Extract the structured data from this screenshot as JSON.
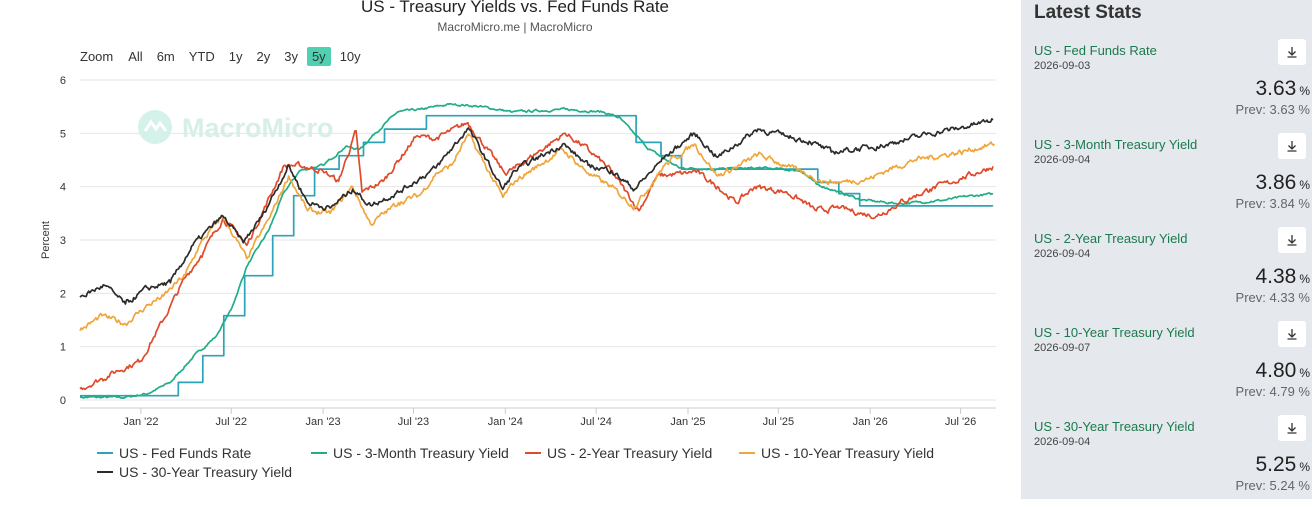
{
  "chart": {
    "title": "US - Treasury Yields vs. Fed Funds Rate",
    "subtitle": "MacroMicro.me | MacroMicro",
    "watermark": "MacroMicro",
    "zoom_label": "Zoom",
    "zoom_options": [
      "All",
      "6m",
      "YTD",
      "1y",
      "2y",
      "3y",
      "5y",
      "10y"
    ],
    "zoom_active": "5y"
  },
  "chart_data": {
    "type": "line",
    "title": "US - Treasury Yields vs. Fed Funds Rate",
    "xlabel": "",
    "ylabel": "Percent",
    "ylim": [
      0,
      6
    ],
    "yticks": [
      0,
      1,
      2,
      3,
      4,
      5,
      6
    ],
    "xlim": [
      "2021-09-01",
      "2026-09-10"
    ],
    "xticks": [
      {
        "date": "2022-01-01",
        "label": "Jan '22"
      },
      {
        "date": "2022-07-01",
        "label": "Jul '22"
      },
      {
        "date": "2023-01-01",
        "label": "Jan '23"
      },
      {
        "date": "2023-07-01",
        "label": "Jul '23"
      },
      {
        "date": "2024-01-01",
        "label": "Jan '24"
      },
      {
        "date": "2024-07-01",
        "label": "Jul '24"
      },
      {
        "date": "2025-01-01",
        "label": "Jan '25"
      },
      {
        "date": "2025-07-01",
        "label": "Jul '25"
      },
      {
        "date": "2026-01-01",
        "label": "Jan '26"
      },
      {
        "date": "2026-07-01",
        "label": "Jul '26"
      }
    ],
    "grid": true,
    "legend_position": "bottom",
    "series": [
      {
        "name": "US - Fed Funds Rate",
        "color": "#2ba3b8",
        "step": true,
        "points": [
          [
            "2021-09-01",
            0.08
          ],
          [
            "2022-03-17",
            0.33
          ],
          [
            "2022-05-05",
            0.83
          ],
          [
            "2022-06-16",
            1.58
          ],
          [
            "2022-07-28",
            2.33
          ],
          [
            "2022-09-22",
            3.08
          ],
          [
            "2022-11-03",
            3.83
          ],
          [
            "2022-12-15",
            4.33
          ],
          [
            "2023-02-02",
            4.58
          ],
          [
            "2023-03-23",
            4.83
          ],
          [
            "2023-05-04",
            5.08
          ],
          [
            "2023-07-27",
            5.33
          ],
          [
            "2024-09-19",
            4.83
          ],
          [
            "2024-11-08",
            4.58
          ],
          [
            "2024-12-19",
            4.33
          ],
          [
            "2025-09-18",
            4.08
          ],
          [
            "2025-10-30",
            3.87
          ],
          [
            "2025-12-11",
            3.64
          ],
          [
            "2026-09-03",
            3.63
          ]
        ]
      },
      {
        "name": "US - 3-Month Treasury Yield",
        "color": "#21ad87",
        "points": [
          [
            "2021-09-01",
            0.05
          ],
          [
            "2021-12-01",
            0.05
          ],
          [
            "2022-01-15",
            0.12
          ],
          [
            "2022-03-01",
            0.33
          ],
          [
            "2022-04-15",
            0.8
          ],
          [
            "2022-06-01",
            1.2
          ],
          [
            "2022-07-01",
            1.7
          ],
          [
            "2022-08-01",
            2.5
          ],
          [
            "2022-09-15",
            3.2
          ],
          [
            "2022-10-15",
            3.9
          ],
          [
            "2022-11-15",
            4.3
          ],
          [
            "2023-01-01",
            4.4
          ],
          [
            "2023-02-15",
            4.75
          ],
          [
            "2023-03-15",
            4.7
          ],
          [
            "2023-04-15",
            5.0
          ],
          [
            "2023-05-30",
            5.4
          ],
          [
            "2023-07-15",
            5.45
          ],
          [
            "2023-09-15",
            5.55
          ],
          [
            "2023-11-15",
            5.5
          ],
          [
            "2024-01-15",
            5.4
          ],
          [
            "2024-05-01",
            5.45
          ],
          [
            "2024-07-15",
            5.4
          ],
          [
            "2024-08-15",
            5.3
          ],
          [
            "2024-09-15",
            5.0
          ],
          [
            "2024-10-15",
            4.7
          ],
          [
            "2024-12-15",
            4.35
          ],
          [
            "2025-03-01",
            4.33
          ],
          [
            "2025-06-01",
            4.35
          ],
          [
            "2025-08-15",
            4.3
          ],
          [
            "2025-09-15",
            4.05
          ],
          [
            "2025-10-30",
            3.9
          ],
          [
            "2025-12-15",
            3.75
          ],
          [
            "2026-03-01",
            3.68
          ],
          [
            "2026-06-01",
            3.75
          ],
          [
            "2026-07-15",
            3.82
          ],
          [
            "2026-09-04",
            3.86
          ]
        ]
      },
      {
        "name": "US - 2-Year Treasury Yield",
        "color": "#e04a2a",
        "points": [
          [
            "2021-09-01",
            0.21
          ],
          [
            "2021-10-15",
            0.4
          ],
          [
            "2021-11-15",
            0.55
          ],
          [
            "2021-12-31",
            0.73
          ],
          [
            "2022-02-15",
            1.5
          ],
          [
            "2022-03-31",
            2.3
          ],
          [
            "2022-05-01",
            2.7
          ],
          [
            "2022-06-14",
            3.4
          ],
          [
            "2022-07-15",
            3.1
          ],
          [
            "2022-08-01",
            2.9
          ],
          [
            "2022-09-01",
            3.5
          ],
          [
            "2022-10-15",
            4.4
          ],
          [
            "2022-11-15",
            4.4
          ],
          [
            "2022-12-31",
            4.3
          ],
          [
            "2023-02-01",
            4.1
          ],
          [
            "2023-03-08",
            5.05
          ],
          [
            "2023-03-20",
            3.9
          ],
          [
            "2023-05-01",
            4.1
          ],
          [
            "2023-07-07",
            4.95
          ],
          [
            "2023-08-15",
            4.9
          ],
          [
            "2023-10-18",
            5.2
          ],
          [
            "2023-12-31",
            4.25
          ],
          [
            "2024-01-20",
            4.35
          ],
          [
            "2024-04-30",
            5.0
          ],
          [
            "2024-06-15",
            4.7
          ],
          [
            "2024-07-31",
            4.3
          ],
          [
            "2024-09-25",
            3.55
          ],
          [
            "2024-10-31",
            4.2
          ],
          [
            "2024-12-31",
            4.25
          ],
          [
            "2025-01-15",
            4.3
          ],
          [
            "2025-03-01",
            4.0
          ],
          [
            "2025-04-07",
            3.7
          ],
          [
            "2025-05-15",
            4.0
          ],
          [
            "2025-07-15",
            3.9
          ],
          [
            "2025-08-15",
            3.75
          ],
          [
            "2025-09-15",
            3.55
          ],
          [
            "2025-11-01",
            3.6
          ],
          [
            "2025-12-15",
            3.5
          ],
          [
            "2026-01-15",
            3.45
          ],
          [
            "2026-03-01",
            3.7
          ],
          [
            "2026-05-01",
            3.95
          ],
          [
            "2026-07-01",
            4.15
          ],
          [
            "2026-09-04",
            4.38
          ]
        ]
      },
      {
        "name": "US - 10-Year Treasury Yield",
        "color": "#f0a63b",
        "points": [
          [
            "2021-09-01",
            1.3
          ],
          [
            "2021-10-15",
            1.58
          ],
          [
            "2021-12-01",
            1.43
          ],
          [
            "2022-01-15",
            1.78
          ],
          [
            "2022-02-15",
            1.95
          ],
          [
            "2022-03-31",
            2.35
          ],
          [
            "2022-05-01",
            2.95
          ],
          [
            "2022-06-14",
            3.45
          ],
          [
            "2022-08-01",
            2.65
          ],
          [
            "2022-09-15",
            3.4
          ],
          [
            "2022-10-24",
            4.2
          ],
          [
            "2022-12-01",
            3.55
          ],
          [
            "2023-01-15",
            3.5
          ],
          [
            "2023-03-01",
            4.0
          ],
          [
            "2023-04-06",
            3.3
          ],
          [
            "2023-06-01",
            3.7
          ],
          [
            "2023-07-15",
            3.85
          ],
          [
            "2023-08-15",
            4.25
          ],
          [
            "2023-09-15",
            4.4
          ],
          [
            "2023-10-19",
            4.98
          ],
          [
            "2023-12-27",
            3.8
          ],
          [
            "2024-01-20",
            4.1
          ],
          [
            "2024-04-25",
            4.7
          ],
          [
            "2024-06-15",
            4.25
          ],
          [
            "2024-07-31",
            4.0
          ],
          [
            "2024-09-16",
            3.62
          ],
          [
            "2024-11-15",
            4.4
          ],
          [
            "2025-01-14",
            4.8
          ],
          [
            "2025-03-01",
            4.2
          ],
          [
            "2025-04-15",
            4.4
          ],
          [
            "2025-05-21",
            4.6
          ],
          [
            "2025-07-15",
            4.4
          ],
          [
            "2025-09-01",
            4.2
          ],
          [
            "2025-10-01",
            4.1
          ],
          [
            "2025-11-01",
            4.08
          ],
          [
            "2025-12-31",
            4.15
          ],
          [
            "2026-02-01",
            4.3
          ],
          [
            "2026-04-01",
            4.5
          ],
          [
            "2026-07-01",
            4.65
          ],
          [
            "2026-09-07",
            4.8
          ]
        ]
      },
      {
        "name": "US - 30-Year Treasury Yield",
        "color": "#2b2b2b",
        "points": [
          [
            "2021-09-01",
            1.93
          ],
          [
            "2021-10-20",
            2.15
          ],
          [
            "2021-12-01",
            1.8
          ],
          [
            "2022-01-15",
            2.1
          ],
          [
            "2022-03-01",
            2.2
          ],
          [
            "2022-04-15",
            2.9
          ],
          [
            "2022-06-14",
            3.45
          ],
          [
            "2022-07-25",
            2.95
          ],
          [
            "2022-09-01",
            3.45
          ],
          [
            "2022-10-24",
            4.4
          ],
          [
            "2022-12-01",
            3.7
          ],
          [
            "2023-01-15",
            3.6
          ],
          [
            "2023-03-01",
            3.95
          ],
          [
            "2023-04-06",
            3.65
          ],
          [
            "2023-06-01",
            3.9
          ],
          [
            "2023-08-15",
            4.35
          ],
          [
            "2023-10-19",
            5.1
          ],
          [
            "2023-12-27",
            3.95
          ],
          [
            "2024-01-20",
            4.3
          ],
          [
            "2024-04-25",
            4.8
          ],
          [
            "2024-06-15",
            4.4
          ],
          [
            "2024-07-31",
            4.3
          ],
          [
            "2024-09-16",
            3.95
          ],
          [
            "2024-11-15",
            4.55
          ],
          [
            "2025-01-14",
            5.0
          ],
          [
            "2025-03-01",
            4.55
          ],
          [
            "2025-05-21",
            5.08
          ],
          [
            "2025-07-15",
            4.95
          ],
          [
            "2025-09-01",
            4.85
          ],
          [
            "2025-10-15",
            4.65
          ],
          [
            "2025-12-01",
            4.7
          ],
          [
            "2026-01-15",
            4.75
          ],
          [
            "2026-03-01",
            4.85
          ],
          [
            "2026-05-01",
            5.0
          ],
          [
            "2026-07-01",
            5.1
          ],
          [
            "2026-09-04",
            5.25
          ]
        ]
      }
    ]
  },
  "stats": {
    "title": "Latest Stats",
    "download_icon": "download-icon",
    "prev_label": "Prev:",
    "items": [
      {
        "name": "US - Fed Funds Rate",
        "date": "2026-09-03",
        "value": "3.63",
        "unit": "%",
        "prev": "3.63 %"
      },
      {
        "name": "US - 3-Month Treasury Yield",
        "date": "2026-09-04",
        "value": "3.86",
        "unit": "%",
        "prev": "3.84 %"
      },
      {
        "name": "US - 2-Year Treasury Yield",
        "date": "2026-09-04",
        "value": "4.38",
        "unit": "%",
        "prev": "4.33 %"
      },
      {
        "name": "US - 10-Year Treasury Yield",
        "date": "2026-09-07",
        "value": "4.80",
        "unit": "%",
        "prev": "4.79 %"
      },
      {
        "name": "US - 30-Year Treasury Yield",
        "date": "2026-09-04",
        "value": "5.25",
        "unit": "%",
        "prev": "5.24 %"
      }
    ]
  }
}
